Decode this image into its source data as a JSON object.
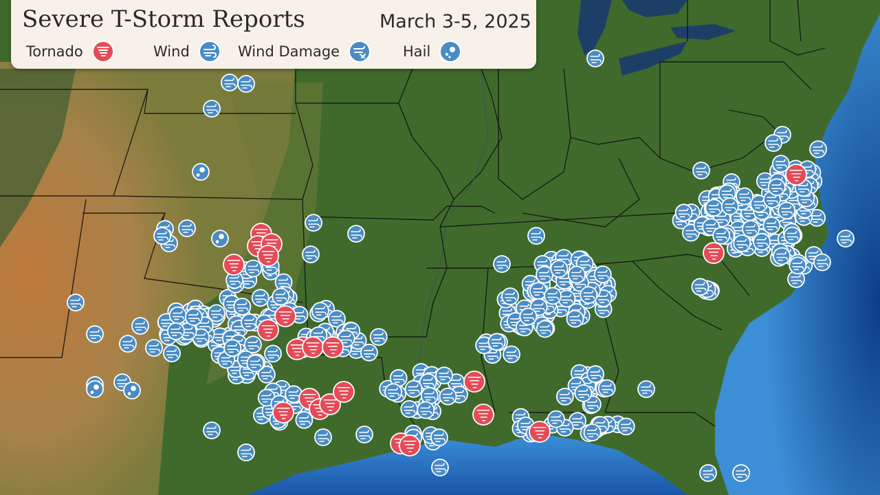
{
  "header": {
    "title": "Severe T-Storm Reports",
    "date_range": "March 3-5, 2025"
  },
  "legend": {
    "items": [
      {
        "key": "tornado",
        "label": "Tornado",
        "icon": "tornado-marker-icon",
        "color": "#e54b57"
      },
      {
        "key": "wind",
        "label": "Wind",
        "icon": "wind-marker-icon",
        "color": "#4a8cc4"
      },
      {
        "key": "wind_damage",
        "label": "Wind Damage",
        "icon": "wind-damage-marker-icon",
        "color": "#4a8cc4"
      },
      {
        "key": "hail",
        "label": "Hail",
        "icon": "hail-marker-icon",
        "color": "#4a8cc4"
      }
    ]
  },
  "colors": {
    "land_green": "#3d6b2b",
    "plains_tan": "#a78a4e",
    "desert_orange": "#c2763a",
    "ocean": "#1f5fa8",
    "lakes": "#1d3f66",
    "borders": "#111111",
    "tornado": "#e54b57",
    "wind": "#4a8cc4",
    "marker_outline": "#ffffff"
  }
}
